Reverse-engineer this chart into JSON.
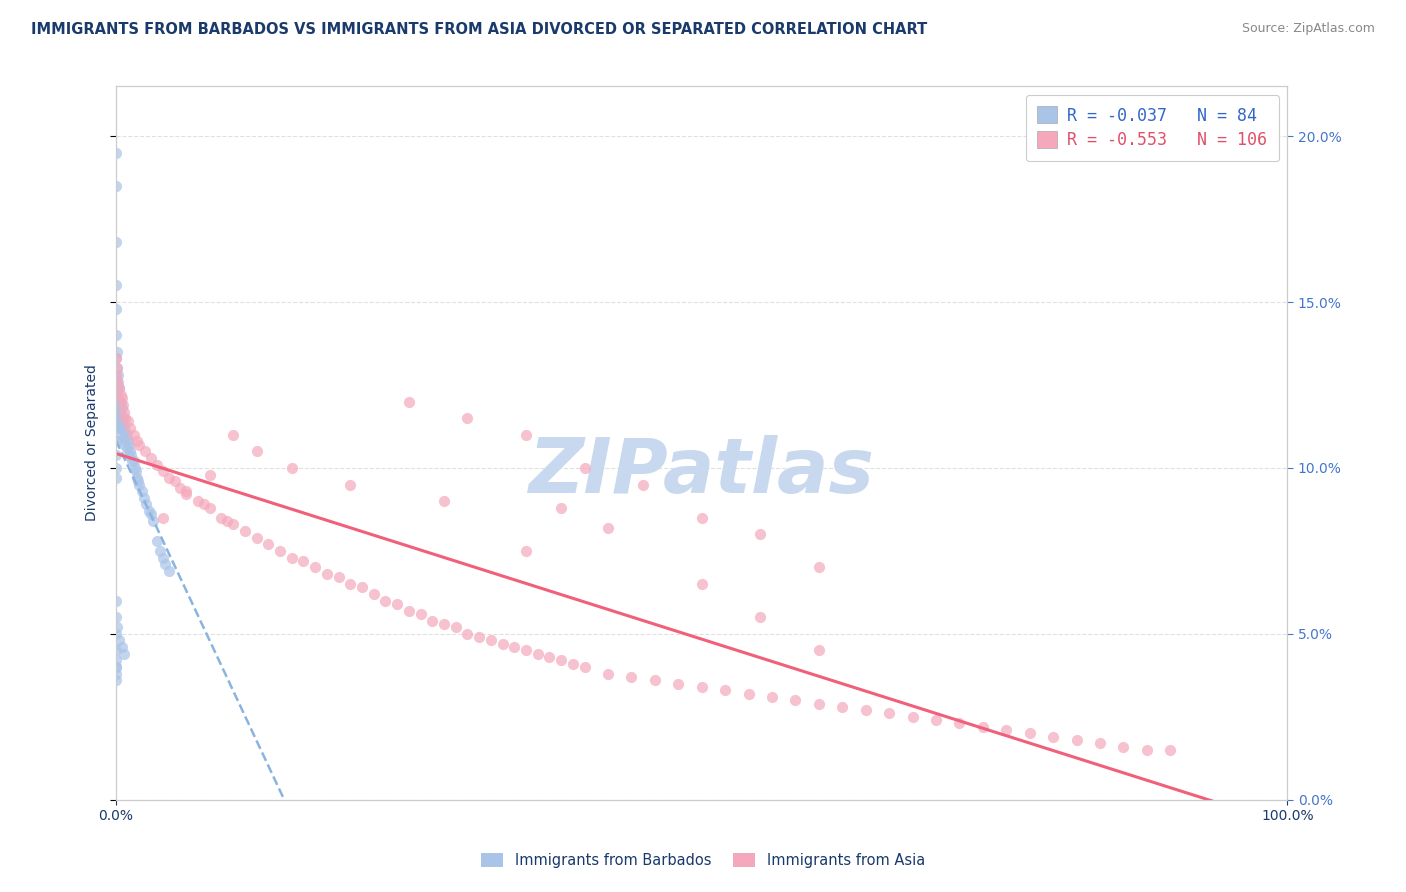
{
  "title": "IMMIGRANTS FROM BARBADOS VS IMMIGRANTS FROM ASIA DIVORCED OR SEPARATED CORRELATION CHART",
  "source_text": "Source: ZipAtlas.com",
  "ylabel": "Divorced or Separated",
  "x_min": 0.0,
  "x_max": 1.0,
  "y_min": 0.0,
  "y_max": 0.215,
  "legend_r1": "-0.037",
  "legend_n1": "84",
  "legend_r2": "-0.553",
  "legend_n2": "106",
  "series1_color": "#aac4e8",
  "series2_color": "#f5a8bc",
  "trend1_color": "#8ab4e0",
  "trend2_color": "#f0607a",
  "watermark": "ZIPatlas",
  "watermark_color": "#c8d8ee",
  "background_color": "#ffffff",
  "grid_color": "#e0e0e0",
  "title_color": "#1a3a6b",
  "label_color": "#1a3a6b",
  "tick_color_right": "#4477cc",
  "series1_label": "Immigrants from Barbados",
  "series2_label": "Immigrants from Asia",
  "legend_text_color1": "#3366cc",
  "legend_text_color2": "#e0506a",
  "barbados_x": [
    0.0,
    0.0,
    0.0,
    0.0,
    0.0,
    0.0,
    0.0,
    0.0,
    0.0,
    0.0,
    0.0,
    0.0,
    0.0,
    0.0,
    0.0,
    0.001,
    0.001,
    0.001,
    0.001,
    0.001,
    0.002,
    0.002,
    0.002,
    0.002,
    0.002,
    0.002,
    0.003,
    0.003,
    0.003,
    0.003,
    0.004,
    0.004,
    0.004,
    0.005,
    0.005,
    0.005,
    0.006,
    0.006,
    0.007,
    0.007,
    0.008,
    0.008,
    0.009,
    0.009,
    0.01,
    0.01,
    0.011,
    0.012,
    0.013,
    0.014,
    0.015,
    0.016,
    0.017,
    0.018,
    0.019,
    0.02,
    0.022,
    0.024,
    0.026,
    0.028,
    0.03,
    0.032,
    0.035,
    0.038,
    0.04,
    0.042,
    0.045,
    0.0,
    0.0,
    0.0,
    0.0,
    0.001,
    0.001,
    0.002,
    0.003,
    0.0,
    0.0,
    0.0,
    0.0,
    0.0,
    0.001,
    0.003,
    0.005,
    0.007
  ],
  "barbados_y": [
    0.195,
    0.185,
    0.168,
    0.155,
    0.148,
    0.14,
    0.133,
    0.127,
    0.122,
    0.118,
    0.113,
    0.108,
    0.104,
    0.1,
    0.097,
    0.135,
    0.13,
    0.126,
    0.122,
    0.118,
    0.128,
    0.124,
    0.12,
    0.116,
    0.112,
    0.108,
    0.124,
    0.12,
    0.116,
    0.112,
    0.12,
    0.116,
    0.112,
    0.118,
    0.114,
    0.11,
    0.115,
    0.111,
    0.113,
    0.109,
    0.111,
    0.107,
    0.11,
    0.106,
    0.108,
    0.104,
    0.107,
    0.105,
    0.104,
    0.102,
    0.102,
    0.1,
    0.099,
    0.097,
    0.096,
    0.095,
    0.093,
    0.091,
    0.089,
    0.087,
    0.086,
    0.084,
    0.078,
    0.075,
    0.073,
    0.071,
    0.069,
    0.04,
    0.036,
    0.06,
    0.055,
    0.125,
    0.12,
    0.118,
    0.115,
    0.05,
    0.045,
    0.042,
    0.04,
    0.038,
    0.052,
    0.048,
    0.046,
    0.044
  ],
  "asia_x": [
    0.0,
    0.0,
    0.001,
    0.002,
    0.003,
    0.004,
    0.005,
    0.006,
    0.007,
    0.008,
    0.01,
    0.012,
    0.015,
    0.018,
    0.02,
    0.025,
    0.03,
    0.035,
    0.04,
    0.045,
    0.05,
    0.055,
    0.06,
    0.07,
    0.075,
    0.08,
    0.09,
    0.095,
    0.1,
    0.11,
    0.12,
    0.13,
    0.14,
    0.15,
    0.16,
    0.17,
    0.18,
    0.19,
    0.2,
    0.21,
    0.22,
    0.23,
    0.24,
    0.25,
    0.26,
    0.27,
    0.28,
    0.29,
    0.3,
    0.31,
    0.32,
    0.33,
    0.34,
    0.35,
    0.36,
    0.37,
    0.38,
    0.39,
    0.4,
    0.42,
    0.44,
    0.46,
    0.48,
    0.5,
    0.52,
    0.54,
    0.56,
    0.58,
    0.6,
    0.62,
    0.64,
    0.66,
    0.68,
    0.7,
    0.72,
    0.74,
    0.76,
    0.78,
    0.8,
    0.82,
    0.84,
    0.86,
    0.88,
    0.9,
    0.25,
    0.3,
    0.35,
    0.4,
    0.45,
    0.5,
    0.55,
    0.6,
    0.38,
    0.42,
    0.35,
    0.28,
    0.2,
    0.15,
    0.12,
    0.1,
    0.08,
    0.06,
    0.04,
    0.5,
    0.55,
    0.6
  ],
  "asia_y": [
    0.133,
    0.128,
    0.13,
    0.126,
    0.124,
    0.122,
    0.121,
    0.119,
    0.117,
    0.115,
    0.114,
    0.112,
    0.11,
    0.108,
    0.107,
    0.105,
    0.103,
    0.101,
    0.099,
    0.097,
    0.096,
    0.094,
    0.093,
    0.09,
    0.089,
    0.088,
    0.085,
    0.084,
    0.083,
    0.081,
    0.079,
    0.077,
    0.075,
    0.073,
    0.072,
    0.07,
    0.068,
    0.067,
    0.065,
    0.064,
    0.062,
    0.06,
    0.059,
    0.057,
    0.056,
    0.054,
    0.053,
    0.052,
    0.05,
    0.049,
    0.048,
    0.047,
    0.046,
    0.045,
    0.044,
    0.043,
    0.042,
    0.041,
    0.04,
    0.038,
    0.037,
    0.036,
    0.035,
    0.034,
    0.033,
    0.032,
    0.031,
    0.03,
    0.029,
    0.028,
    0.027,
    0.026,
    0.025,
    0.024,
    0.023,
    0.022,
    0.021,
    0.02,
    0.019,
    0.018,
    0.017,
    0.016,
    0.015,
    0.015,
    0.12,
    0.115,
    0.11,
    0.1,
    0.095,
    0.085,
    0.08,
    0.07,
    0.088,
    0.082,
    0.075,
    0.09,
    0.095,
    0.1,
    0.105,
    0.11,
    0.098,
    0.092,
    0.085,
    0.065,
    0.055,
    0.045
  ]
}
